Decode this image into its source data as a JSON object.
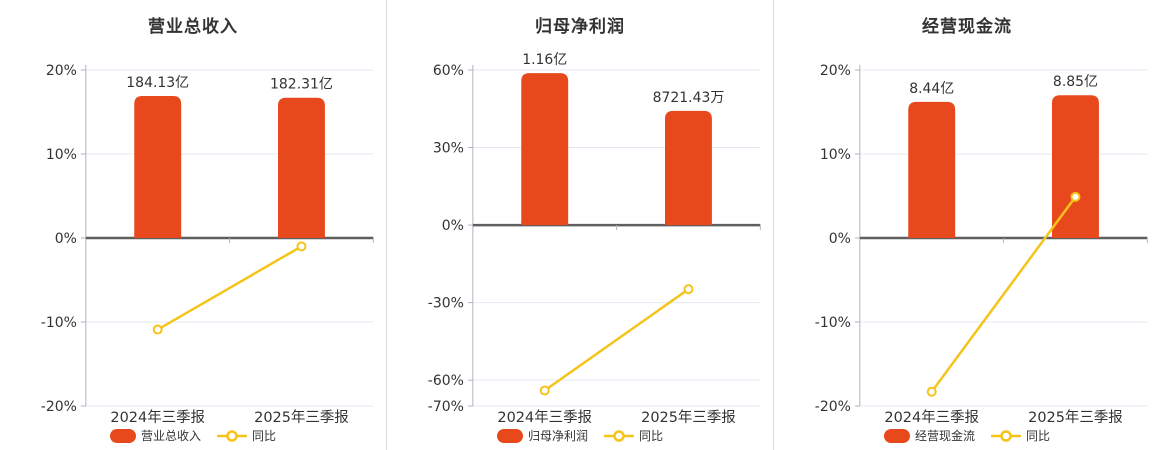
{
  "colors": {
    "bar": "#E8491C",
    "line": "#F5C41A",
    "title": "#333333",
    "text": "#333333",
    "grid": "#E4EAF4",
    "zero_line": "#5F5F5F",
    "axis": "#AEB6C2",
    "separator": "#DADADA",
    "background": "#FFFFFF"
  },
  "chart_data": [
    {
      "type": "bar+line",
      "title": "营业总收入",
      "categories": [
        "2024年三季报",
        "2025年三季报"
      ],
      "bar_series": {
        "name": "营业总收入",
        "value_labels": [
          "184.13亿",
          "182.31亿"
        ],
        "values_yi": [
          184.13,
          182.31
        ],
        "display_pct": [
          16.9,
          16.7
        ]
      },
      "line_series": {
        "name": "同比",
        "values_pct": [
          -10.9,
          -1.0
        ]
      },
      "y_axis": {
        "min": -20,
        "max": 20,
        "ticks_pct": [
          20,
          10,
          0,
          -10,
          -20
        ],
        "tick_suffix": "%"
      },
      "legend": [
        "营业总收入",
        "同比"
      ]
    },
    {
      "type": "bar+line",
      "title": "归母净利润",
      "categories": [
        "2024年三季报",
        "2025年三季报"
      ],
      "bar_series": {
        "name": "归母净利润",
        "value_labels": [
          "1.16亿",
          "8721.43万"
        ],
        "values_yi": [
          1.16,
          0.872143
        ],
        "display_pct": [
          58.8,
          44.2
        ]
      },
      "line_series": {
        "name": "同比",
        "values_pct": [
          -64.0,
          -24.8
        ]
      },
      "y_axis": {
        "min": -70,
        "max": 60,
        "ticks_pct": [
          60,
          30,
          0,
          -30,
          -60,
          -70
        ],
        "tick_suffix": "%"
      },
      "legend": [
        "归母净利润",
        "同比"
      ]
    },
    {
      "type": "bar+line",
      "title": "经营现金流",
      "categories": [
        "2024年三季报",
        "2025年三季报"
      ],
      "bar_series": {
        "name": "经营现金流",
        "value_labels": [
          "8.44亿",
          "8.85亿"
        ],
        "values_yi": [
          8.44,
          8.85
        ],
        "display_pct": [
          16.2,
          17.0
        ]
      },
      "line_series": {
        "name": "同比",
        "values_pct": [
          -18.3,
          4.9
        ]
      },
      "y_axis": {
        "min": -20,
        "max": 20,
        "ticks_pct": [
          20,
          10,
          0,
          -10,
          -20
        ],
        "tick_suffix": "%"
      },
      "legend": [
        "经营现金流",
        "同比"
      ]
    }
  ]
}
